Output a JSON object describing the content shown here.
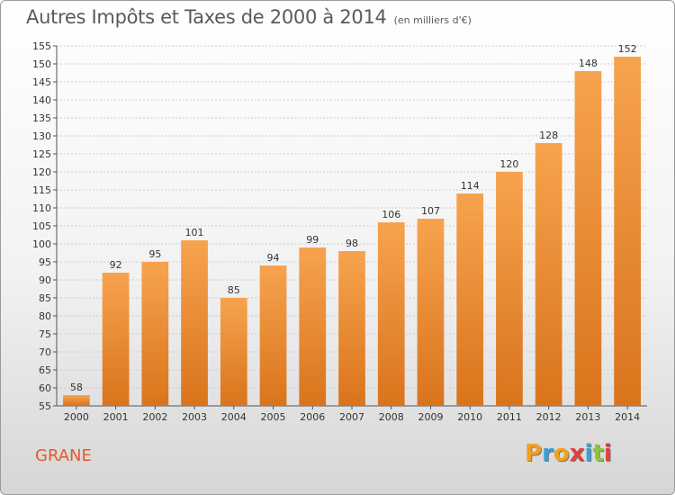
{
  "title": "Autres Impôts et Taxes de 2000 à 2014",
  "subtitle": "(en milliers d'€)",
  "location": "GRANE",
  "logo": {
    "text": "Proxiti",
    "letters": [
      "P",
      "r",
      "o",
      "x",
      "i",
      "t",
      "i"
    ],
    "colors": [
      "#f0a020",
      "#3aa0d8",
      "#f0a020",
      "#e04040",
      "#3aa0d8",
      "#8cc63f",
      "#e04040"
    ]
  },
  "colors": {
    "bar": "#f0922f",
    "bar_dark": "#e07820",
    "grid": "#cccccc",
    "location": "#e35a2e"
  },
  "chart_data": {
    "type": "bar",
    "title": "Autres Impôts et Taxes de 2000 à 2014",
    "subtitle": "(en milliers d'€)",
    "xlabel": "",
    "ylabel": "",
    "categories": [
      "2000",
      "2001",
      "2002",
      "2003",
      "2004",
      "2005",
      "2006",
      "2007",
      "2008",
      "2009",
      "2010",
      "2011",
      "2012",
      "2013",
      "2014"
    ],
    "values": [
      58,
      92,
      95,
      101,
      85,
      94,
      99,
      98,
      106,
      107,
      114,
      120,
      128,
      148,
      152
    ],
    "ylim": [
      55,
      155
    ],
    "yticks": [
      55,
      60,
      65,
      70,
      75,
      80,
      85,
      90,
      95,
      100,
      105,
      110,
      115,
      120,
      125,
      130,
      135,
      140,
      145,
      150,
      155
    ],
    "grid": true
  }
}
